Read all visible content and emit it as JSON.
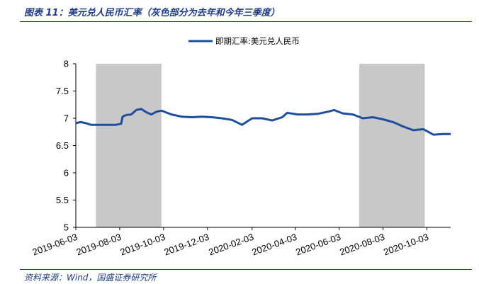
{
  "figure": {
    "title": "图表 11：美元兑人民币汇率（灰色部分为去年和今年三季度）",
    "source": "资料来源：Wind，国盛证券研究所"
  },
  "colors": {
    "line": "#1f4e9c",
    "shade": "#c8c8c8",
    "accent": "#1f3c82"
  },
  "chart_data": {
    "type": "line",
    "title": "",
    "xlabel": "",
    "ylabel": "",
    "ylim": [
      5,
      8
    ],
    "yticks": [
      5,
      5.5,
      6,
      6.5,
      7,
      7.5,
      8
    ],
    "xlim": [
      "2019-06-03",
      "2020-11-05"
    ],
    "xticks": [
      "2019-06-03",
      "2019-08-03",
      "2019-10-03",
      "2019-12-03",
      "2020-02-03",
      "2020-04-03",
      "2020-06-03",
      "2020-08-03",
      "2020-10-03"
    ],
    "legend": "top-center",
    "grid": false,
    "shaded_ranges": [
      {
        "start": "2019-07-01",
        "end": "2019-09-30"
      },
      {
        "start": "2020-07-01",
        "end": "2020-09-30"
      }
    ],
    "series": [
      {
        "name": "即期汇率:美元兑人民币",
        "x": [
          "2019-06-03",
          "2019-06-10",
          "2019-06-17",
          "2019-06-24",
          "2019-07-01",
          "2019-07-08",
          "2019-07-15",
          "2019-07-22",
          "2019-07-29",
          "2019-08-05",
          "2019-08-07",
          "2019-08-12",
          "2019-08-19",
          "2019-08-26",
          "2019-09-02",
          "2019-09-09",
          "2019-09-16",
          "2019-09-23",
          "2019-09-30",
          "2019-10-14",
          "2019-10-28",
          "2019-11-11",
          "2019-11-25",
          "2019-12-09",
          "2019-12-23",
          "2020-01-06",
          "2020-01-20",
          "2020-02-03",
          "2020-02-17",
          "2020-03-02",
          "2020-03-16",
          "2020-03-23",
          "2020-04-06",
          "2020-04-20",
          "2020-05-04",
          "2020-05-18",
          "2020-05-27",
          "2020-06-08",
          "2020-06-22",
          "2020-07-06",
          "2020-07-20",
          "2020-08-03",
          "2020-08-17",
          "2020-08-31",
          "2020-09-14",
          "2020-09-28",
          "2020-10-12",
          "2020-10-26",
          "2020-11-05"
        ],
        "values": [
          6.91,
          6.93,
          6.91,
          6.88,
          6.88,
          6.88,
          6.88,
          6.88,
          6.88,
          6.9,
          7.03,
          7.06,
          7.07,
          7.15,
          7.17,
          7.11,
          7.07,
          7.12,
          7.14,
          7.07,
          7.03,
          7.02,
          7.03,
          7.02,
          7.0,
          6.97,
          6.88,
          7.0,
          7.0,
          6.96,
          7.02,
          7.1,
          7.07,
          7.07,
          7.08,
          7.12,
          7.15,
          7.09,
          7.07,
          7.0,
          7.02,
          6.98,
          6.93,
          6.85,
          6.78,
          6.8,
          6.7,
          6.71,
          6.71
        ]
      }
    ]
  }
}
